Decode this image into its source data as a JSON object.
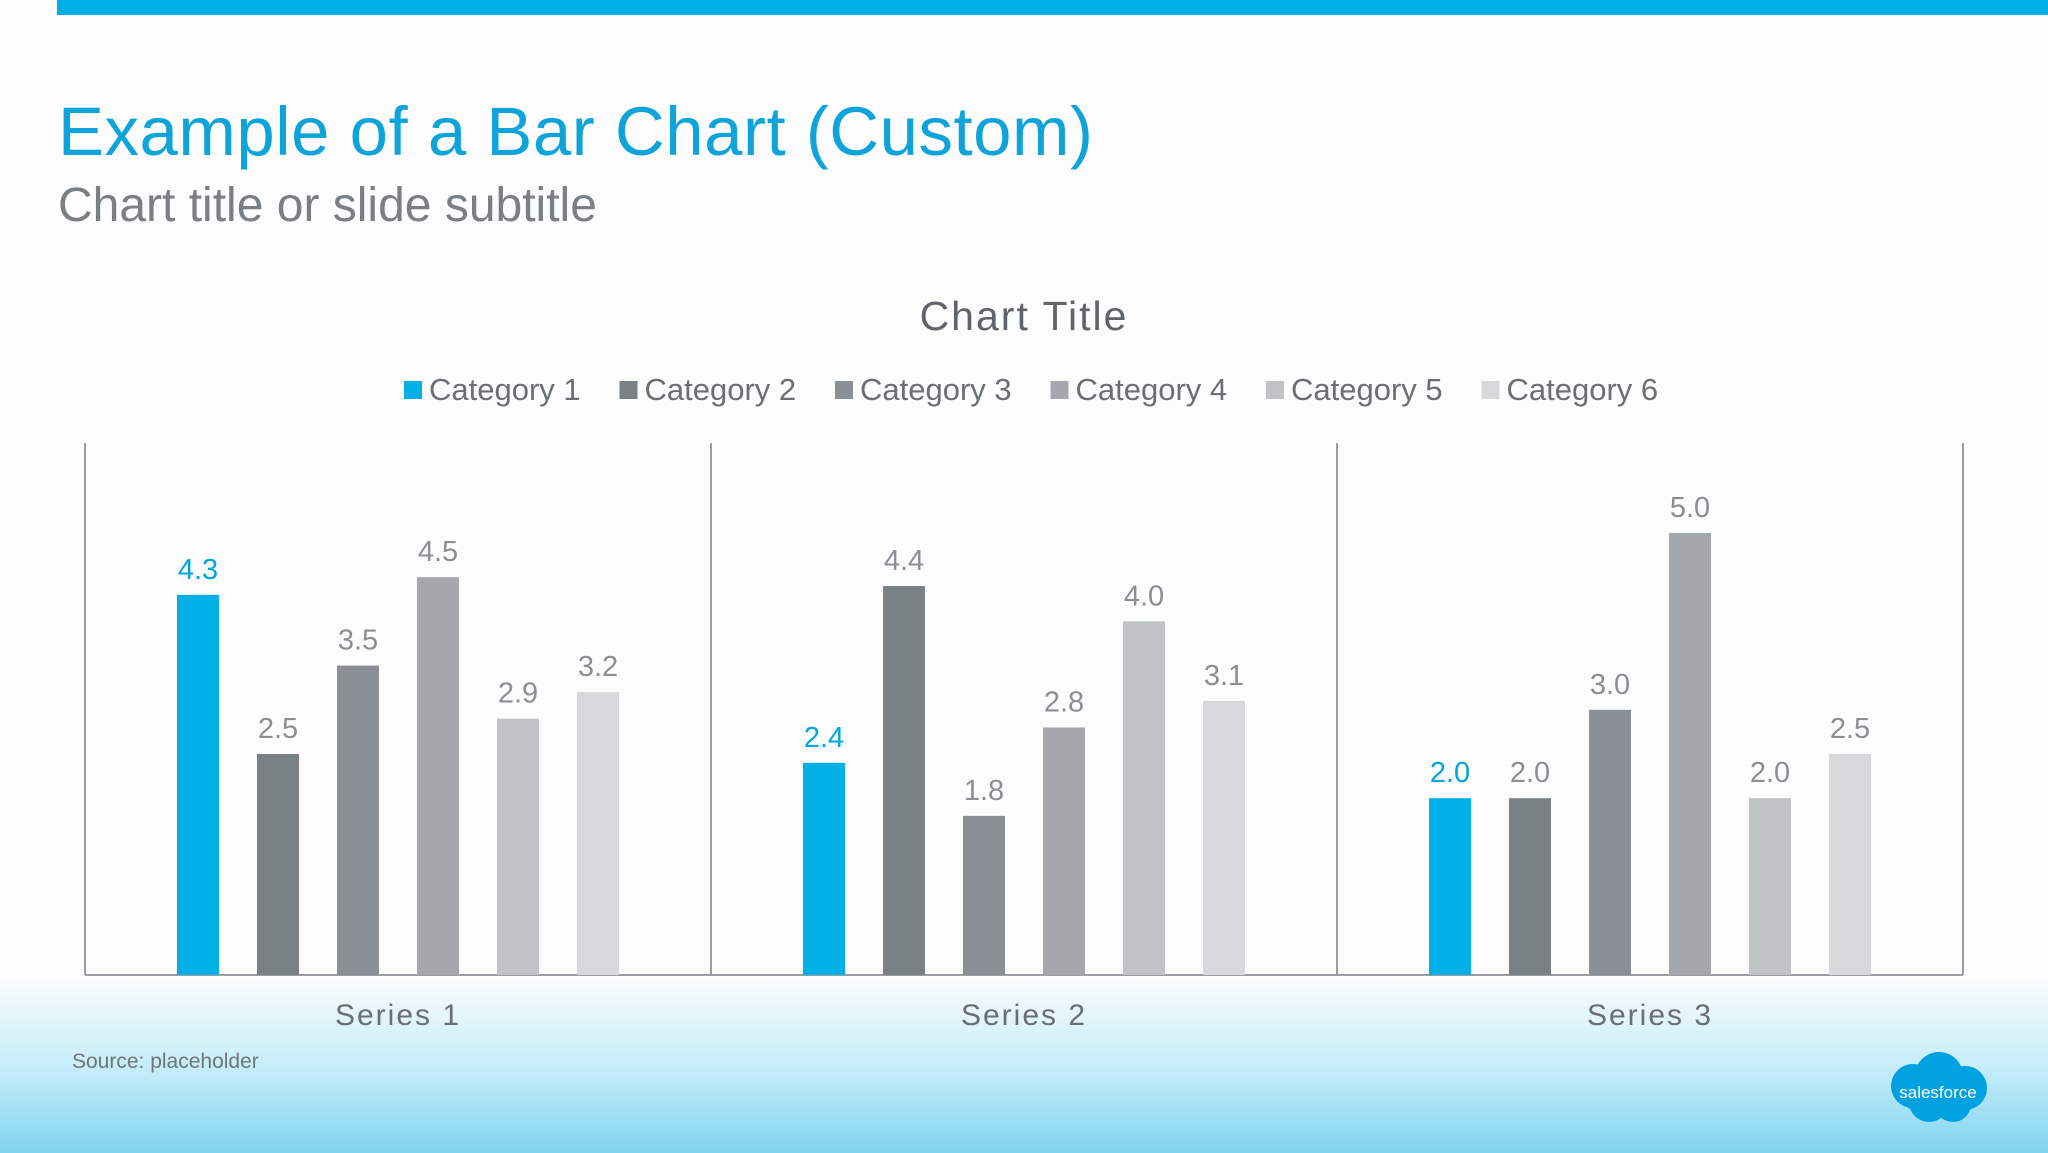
{
  "slide": {
    "title": "Example of a Bar Chart (Custom)",
    "subtitle": "Chart title or slide subtitle",
    "source": "Source: placeholder",
    "logo_text": "salesforce"
  },
  "colors": {
    "accent": "#00b0e6",
    "title": "#0ea4d9",
    "subtitle": "#7a7f83",
    "category_colors": [
      "#00b0e6",
      "#7a8184",
      "#8a9095",
      "#a4a8ad",
      "#bfc3c3",
      "#d8d8da"
    ],
    "label_colors": [
      "#00a6e0",
      "#8b8f93",
      "#8b8f93",
      "#8b8f93",
      "#8b8f93",
      "#8b8f93"
    ]
  },
  "chart_data": {
    "type": "bar",
    "title": "Chart Title",
    "xlabel": "",
    "ylabel": "",
    "ylim": [
      0,
      6
    ],
    "grid": false,
    "legend": "top-center",
    "categories": [
      "Series 1",
      "Series 2",
      "Series 3"
    ],
    "series": [
      {
        "name": "Category 1",
        "values": [
          4.3,
          2.4,
          2.0
        ],
        "labels": [
          "4.3",
          "2.4",
          "2.0"
        ]
      },
      {
        "name": "Category 2",
        "values": [
          2.5,
          4.4,
          2.0
        ],
        "labels": [
          "2.5",
          "4.4",
          "2.0"
        ]
      },
      {
        "name": "Category 3",
        "values": [
          3.5,
          1.8,
          3.0
        ],
        "labels": [
          "3.5",
          "1.8",
          "3.0"
        ]
      },
      {
        "name": "Category 4",
        "values": [
          4.5,
          2.8,
          5.0
        ],
        "labels": [
          "4.5",
          "2.8",
          "5.0"
        ]
      },
      {
        "name": "Category 5",
        "values": [
          2.9,
          4.0,
          2.0
        ],
        "labels": [
          "2.9",
          "4.0",
          "2.0"
        ]
      },
      {
        "name": "Category 6",
        "values": [
          3.2,
          3.1,
          2.5
        ],
        "labels": [
          "3.2",
          "3.1",
          "2.5"
        ]
      }
    ]
  }
}
